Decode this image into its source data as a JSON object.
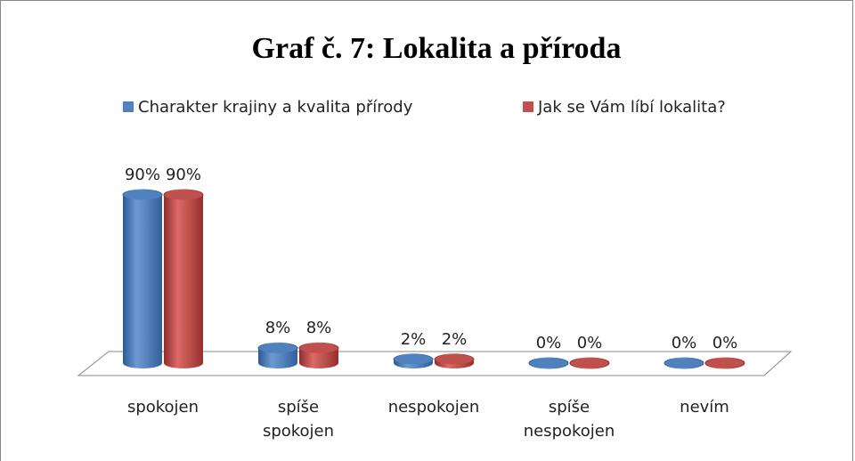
{
  "chart_data": {
    "type": "bar3d",
    "title": "Graf č. 7: Lokalita a příroda",
    "categories": [
      "spokojen",
      "spíše spokojen",
      "nespokojen",
      "spíše nespokojen",
      "nevím"
    ],
    "series": [
      {
        "name": "Charakter krajiny a kvalita přírody",
        "color": "#4f81bd",
        "values": [
          90,
          8,
          2,
          0,
          0
        ],
        "value_labels": [
          "90%",
          "8%",
          "2%",
          "0%",
          "0%"
        ]
      },
      {
        "name": "Jak se Vám líbí lokalita?",
        "color": "#c0504d",
        "values": [
          90,
          8,
          2,
          0,
          0
        ],
        "value_labels": [
          "90%",
          "8%",
          "2%",
          "0%",
          "0%"
        ]
      }
    ],
    "legend": "top"
  }
}
